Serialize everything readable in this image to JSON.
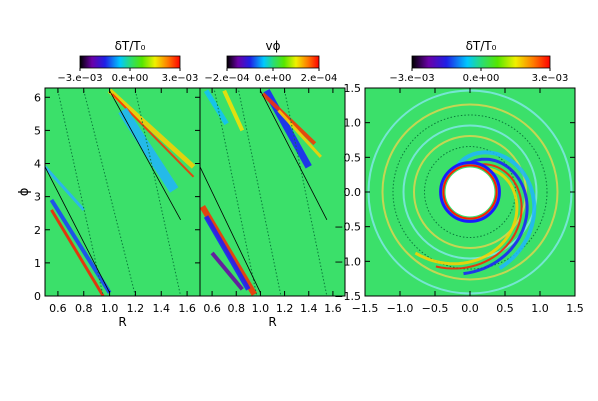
{
  "chart_data": [
    {
      "type": "heatmap",
      "colorbar": {
        "title": "δT/T₀",
        "ticks": [
          "−3.e−03",
          "0.e+00",
          "3.e−03"
        ],
        "range": [
          -0.003,
          0.003
        ],
        "colormap": "rainbow (black–purple–blue–cyan–green–yellow–red)"
      },
      "xlabel": "R",
      "ylabel": "ϕ",
      "xlim": [
        0.5,
        1.7
      ],
      "ylim": [
        0,
        6.28
      ],
      "xticks": [
        "0.6",
        "0.8",
        "1.0",
        "1.2",
        "1.4",
        "1.6"
      ],
      "yticks": [
        "0",
        "1",
        "2",
        "3",
        "4",
        "5",
        "6"
      ]
    },
    {
      "type": "heatmap",
      "colorbar": {
        "title": "vϕ",
        "ticks": [
          "−2.e−04",
          "0.e+00",
          "2.e−04"
        ],
        "range": [
          -0.0002,
          0.0002
        ],
        "colormap": "rainbow (black–purple–blue–cyan–green–yellow–red)"
      },
      "xlabel": "R",
      "ylabel": "",
      "xlim": [
        0.5,
        1.7
      ],
      "ylim": [
        0,
        6.28
      ],
      "xticks": [
        "0.6",
        "0.8",
        "1.0",
        "1.2",
        "1.4",
        "1.6"
      ],
      "yticks": []
    },
    {
      "type": "heatmap",
      "colorbar": {
        "title": "δT/T₀",
        "ticks": [
          "−3.e−03",
          "0.e+00",
          "3.e−03"
        ],
        "range": [
          -0.003,
          0.003
        ],
        "colormap": "rainbow (black–purple–blue–cyan–green–yellow–red)"
      },
      "xlabel": "",
      "ylabel": "",
      "xlim": [
        -1.5,
        1.5
      ],
      "ylim": [
        -1.5,
        1.5
      ],
      "xticks": [
        "−1.5",
        "−1.0",
        "−0.5",
        "0.0",
        "0.5",
        "1.0",
        "1.5"
      ],
      "yticks": [
        "−1.5",
        "−1.0",
        "−0.5",
        "0.0",
        "0.5",
        "1.0",
        "1.5"
      ]
    }
  ]
}
